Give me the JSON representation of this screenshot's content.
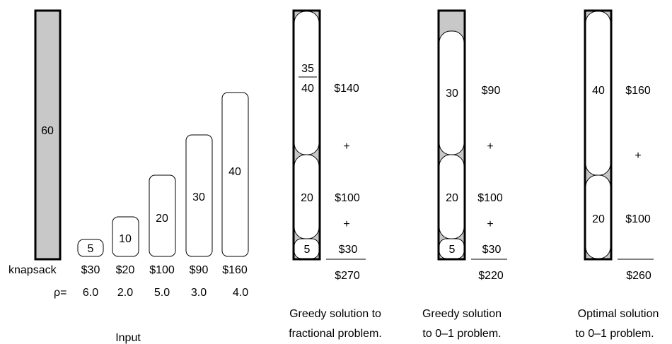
{
  "knapsack": {
    "label": "knapsack",
    "capacity": "60",
    "fill_color": "#c8c8c8"
  },
  "input": {
    "rho_label": "ρ=",
    "caption": "Input",
    "items": [
      {
        "weight": "5",
        "value": "$30",
        "ratio": "6.0"
      },
      {
        "weight": "10",
        "value": "$20",
        "ratio": "2.0"
      },
      {
        "weight": "20",
        "value": "$100",
        "ratio": "5.0"
      },
      {
        "weight": "30",
        "value": "$90",
        "ratio": "3.0"
      },
      {
        "weight": "40",
        "value": "$160",
        "ratio": "4.0"
      }
    ]
  },
  "solutions": [
    {
      "caption_line1": "Greedy solution to",
      "caption_line2": "fractional problem.",
      "fraction_numerator": "35",
      "fraction_denominator": "40",
      "items": [
        {
          "weight": "20",
          "value": "$100"
        },
        {
          "weight": "5",
          "value": "$30"
        }
      ],
      "top_value": "$140",
      "plus": "+",
      "total": "$270"
    },
    {
      "caption_line1": "Greedy solution",
      "caption_line2": "to 0–1 problem.",
      "items": [
        {
          "weight": "30",
          "value": "$90"
        },
        {
          "weight": "20",
          "value": "$100"
        },
        {
          "weight": "5",
          "value": "$30"
        }
      ],
      "plus": "+",
      "total": "$220"
    },
    {
      "caption_line1": "Optimal solution",
      "caption_line2": "to 0–1 problem.",
      "items": [
        {
          "weight": "40",
          "value": "$160"
        },
        {
          "weight": "20",
          "value": "$100"
        }
      ],
      "plus": "+",
      "total": "$260"
    }
  ]
}
